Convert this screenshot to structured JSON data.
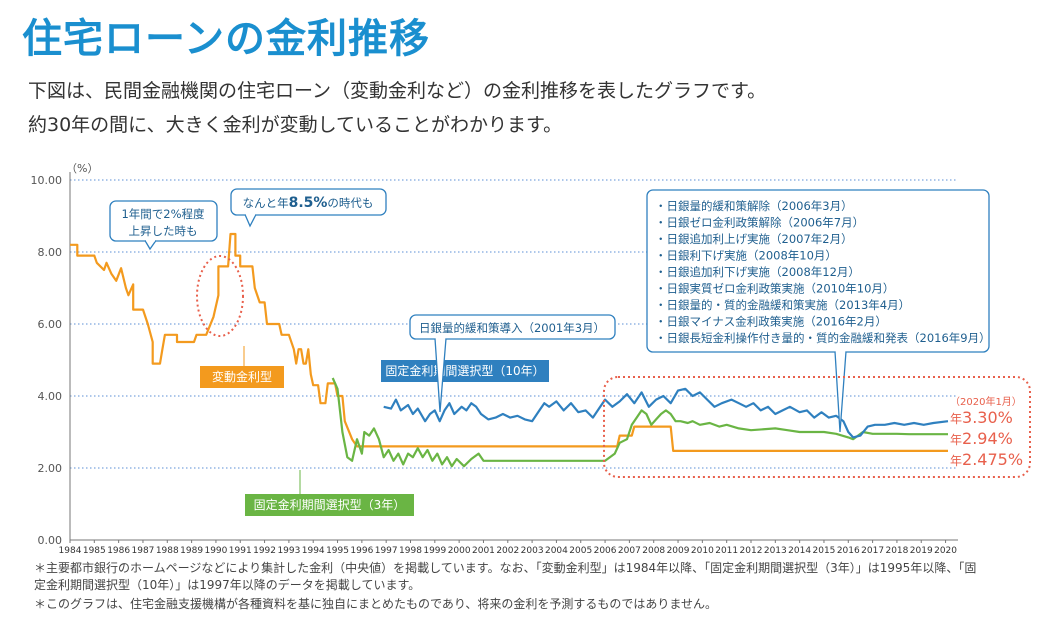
{
  "title": "住宅ローンの金利推移",
  "description": [
    "下図は、民間金融機関の住宅ローン（変動金利など）の金利推移を表したグラフです。",
    "約30年の間に、大きく金利が変動していることがわかります。"
  ],
  "notes": [
    "＊主要都市銀行のホームページなどにより集計した金利（中央値）を掲載しています。なお、「変動金利型」は1984年以降、「固定金利期間選択型（3年）」は1995年以降、「固定金利期間選択型（10年）」は1997年以降のデータを掲載しています。",
    "＊このグラフは、住宅金融支援機構が各種資料を基に独自にまとめたものであり、将来の金利を予測するものではありません。"
  ],
  "chart_data": {
    "type": "line",
    "title": "",
    "unit_label": "（%）",
    "ylim": [
      0,
      10
    ],
    "yticks": [
      "0.00",
      "2.00",
      "4.00",
      "6.00",
      "8.00",
      "10.00"
    ],
    "xlim": [
      1984,
      2020.1
    ],
    "xticks": [
      "1984",
      "1985",
      "1986",
      "1987",
      "1988",
      "1989",
      "1990",
      "1991",
      "1992",
      "1993",
      "1994",
      "1995",
      "1996",
      "1997",
      "1998",
      "1999",
      "2000",
      "2001",
      "2002",
      "2003",
      "2004",
      "2005",
      "2006",
      "2007",
      "2008",
      "2009",
      "2010",
      "2011",
      "2012",
      "2013",
      "2014",
      "2015",
      "2016",
      "2017",
      "2018",
      "2019",
      "2020"
    ],
    "grid": "horizontal-dotted",
    "series": [
      {
        "name": "変動金利型",
        "color": "#f39a1e",
        "points": [
          [
            1984.0,
            8.2
          ],
          [
            1984.3,
            8.2
          ],
          [
            1984.3,
            7.9
          ],
          [
            1985.0,
            7.9
          ],
          [
            1985.1,
            7.7
          ],
          [
            1985.4,
            7.5
          ],
          [
            1985.5,
            7.7
          ],
          [
            1985.7,
            7.4
          ],
          [
            1985.9,
            7.2
          ],
          [
            1986.1,
            7.55
          ],
          [
            1986.3,
            7.0
          ],
          [
            1986.4,
            6.8
          ],
          [
            1986.6,
            7.1
          ],
          [
            1986.6,
            6.4
          ],
          [
            1986.9,
            6.4
          ],
          [
            1987.0,
            6.4
          ],
          [
            1987.2,
            6.0
          ],
          [
            1987.4,
            5.5
          ],
          [
            1987.4,
            4.9
          ],
          [
            1987.7,
            4.9
          ],
          [
            1987.8,
            5.3
          ],
          [
            1987.9,
            5.7
          ],
          [
            1988.4,
            5.7
          ],
          [
            1988.4,
            5.5
          ],
          [
            1989.1,
            5.5
          ],
          [
            1989.2,
            5.7
          ],
          [
            1989.6,
            5.7
          ],
          [
            1989.9,
            6.2
          ],
          [
            1990.1,
            6.8
          ],
          [
            1990.1,
            7.6
          ],
          [
            1990.5,
            7.6
          ],
          [
            1990.6,
            8.5
          ],
          [
            1990.8,
            8.5
          ],
          [
            1990.8,
            7.9
          ],
          [
            1991.0,
            7.9
          ],
          [
            1991.0,
            7.6
          ],
          [
            1991.5,
            7.6
          ],
          [
            1991.6,
            7.0
          ],
          [
            1991.8,
            6.6
          ],
          [
            1992.0,
            6.6
          ],
          [
            1992.1,
            6.0
          ],
          [
            1992.6,
            6.0
          ],
          [
            1992.7,
            5.7
          ],
          [
            1993.0,
            5.7
          ],
          [
            1993.2,
            5.3
          ],
          [
            1993.3,
            4.9
          ],
          [
            1993.4,
            5.3
          ],
          [
            1993.5,
            5.3
          ],
          [
            1993.6,
            4.9
          ],
          [
            1993.7,
            4.9
          ],
          [
            1993.8,
            5.3
          ],
          [
            1993.9,
            4.6
          ],
          [
            1994.0,
            4.3
          ],
          [
            1994.2,
            4.3
          ],
          [
            1994.3,
            3.8
          ],
          [
            1994.5,
            3.8
          ],
          [
            1994.6,
            4.35
          ],
          [
            1994.9,
            4.35
          ],
          [
            1995.0,
            4.0
          ],
          [
            1995.2,
            4.0
          ],
          [
            1995.3,
            3.3
          ],
          [
            1995.6,
            2.8
          ],
          [
            1995.8,
            2.6
          ],
          [
            2006.5,
            2.6
          ],
          [
            2006.6,
            2.9
          ],
          [
            2007.1,
            2.9
          ],
          [
            2007.2,
            3.15
          ],
          [
            2008.7,
            3.15
          ],
          [
            2008.8,
            2.475
          ],
          [
            2020.1,
            2.475
          ]
        ]
      },
      {
        "name": "固定金利期間選択型（3年）",
        "color": "#6ab544",
        "points": [
          [
            1994.8,
            4.5
          ],
          [
            1995.0,
            4.2
          ],
          [
            1995.2,
            3.0
          ],
          [
            1995.4,
            2.3
          ],
          [
            1995.6,
            2.2
          ],
          [
            1995.8,
            2.8
          ],
          [
            1996.0,
            2.4
          ],
          [
            1996.1,
            3.0
          ],
          [
            1996.3,
            2.9
          ],
          [
            1996.5,
            3.1
          ],
          [
            1996.7,
            2.8
          ],
          [
            1996.9,
            2.3
          ],
          [
            1997.1,
            2.5
          ],
          [
            1997.3,
            2.2
          ],
          [
            1997.5,
            2.4
          ],
          [
            1997.7,
            2.1
          ],
          [
            1997.9,
            2.4
          ],
          [
            1998.1,
            2.3
          ],
          [
            1998.3,
            2.55
          ],
          [
            1998.5,
            2.3
          ],
          [
            1998.7,
            2.5
          ],
          [
            1998.9,
            2.2
          ],
          [
            1999.1,
            2.4
          ],
          [
            1999.3,
            2.1
          ],
          [
            1999.5,
            2.3
          ],
          [
            1999.7,
            2.05
          ],
          [
            1999.9,
            2.25
          ],
          [
            2000.2,
            2.05
          ],
          [
            2000.5,
            2.25
          ],
          [
            2000.8,
            2.4
          ],
          [
            2001.0,
            2.2
          ],
          [
            2001.3,
            2.2
          ],
          [
            2001.6,
            2.2
          ],
          [
            2003.0,
            2.2
          ],
          [
            2005.0,
            2.2
          ],
          [
            2006.0,
            2.2
          ],
          [
            2006.4,
            2.4
          ],
          [
            2006.6,
            2.7
          ],
          [
            2006.9,
            2.8
          ],
          [
            2007.1,
            3.2
          ],
          [
            2007.3,
            3.4
          ],
          [
            2007.5,
            3.6
          ],
          [
            2007.7,
            3.5
          ],
          [
            2007.9,
            3.2
          ],
          [
            2008.1,
            3.35
          ],
          [
            2008.3,
            3.5
          ],
          [
            2008.5,
            3.6
          ],
          [
            2008.7,
            3.5
          ],
          [
            2008.9,
            3.3
          ],
          [
            2009.1,
            3.3
          ],
          [
            2009.4,
            3.25
          ],
          [
            2009.6,
            3.3
          ],
          [
            2009.9,
            3.2
          ],
          [
            2010.3,
            3.25
          ],
          [
            2010.7,
            3.15
          ],
          [
            2011.0,
            3.2
          ],
          [
            2011.5,
            3.1
          ],
          [
            2012.0,
            3.05
          ],
          [
            2013.0,
            3.1
          ],
          [
            2013.5,
            3.05
          ],
          [
            2014.0,
            3.0
          ],
          [
            2015.0,
            3.0
          ],
          [
            2015.5,
            2.95
          ],
          [
            2016.0,
            2.85
          ],
          [
            2016.2,
            2.8
          ],
          [
            2016.6,
            3.0
          ],
          [
            2017.0,
            2.95
          ],
          [
            2017.5,
            2.95
          ],
          [
            2018.0,
            2.95
          ],
          [
            2018.5,
            2.94
          ],
          [
            2019.5,
            2.94
          ],
          [
            2020.1,
            2.94
          ]
        ]
      },
      {
        "name": "固定金利期間選択型（10年）",
        "color": "#2f80bf",
        "points": [
          [
            1996.9,
            3.7
          ],
          [
            1997.2,
            3.65
          ],
          [
            1997.4,
            3.9
          ],
          [
            1997.6,
            3.6
          ],
          [
            1997.9,
            3.75
          ],
          [
            1998.1,
            3.5
          ],
          [
            1998.3,
            3.65
          ],
          [
            1998.6,
            3.3
          ],
          [
            1998.8,
            3.5
          ],
          [
            1999.0,
            3.6
          ],
          [
            1999.2,
            3.3
          ],
          [
            1999.4,
            3.6
          ],
          [
            1999.6,
            3.8
          ],
          [
            1999.8,
            3.5
          ],
          [
            2000.1,
            3.7
          ],
          [
            2000.3,
            3.6
          ],
          [
            2000.5,
            3.8
          ],
          [
            2000.7,
            3.7
          ],
          [
            2000.9,
            3.5
          ],
          [
            2001.2,
            3.35
          ],
          [
            2001.5,
            3.4
          ],
          [
            2001.8,
            3.5
          ],
          [
            2002.1,
            3.4
          ],
          [
            2002.4,
            3.45
          ],
          [
            2002.7,
            3.35
          ],
          [
            2003.0,
            3.3
          ],
          [
            2003.3,
            3.6
          ],
          [
            2003.5,
            3.8
          ],
          [
            2003.7,
            3.7
          ],
          [
            2004.0,
            3.85
          ],
          [
            2004.3,
            3.6
          ],
          [
            2004.6,
            3.8
          ],
          [
            2004.9,
            3.55
          ],
          [
            2005.2,
            3.6
          ],
          [
            2005.5,
            3.4
          ],
          [
            2005.8,
            3.7
          ],
          [
            2006.0,
            3.9
          ],
          [
            2006.3,
            3.7
          ],
          [
            2006.6,
            3.85
          ],
          [
            2006.9,
            4.05
          ],
          [
            2007.2,
            3.8
          ],
          [
            2007.5,
            4.1
          ],
          [
            2007.8,
            3.7
          ],
          [
            2008.1,
            3.9
          ],
          [
            2008.4,
            4.0
          ],
          [
            2008.7,
            3.8
          ],
          [
            2009.0,
            4.15
          ],
          [
            2009.3,
            4.2
          ],
          [
            2009.6,
            4.0
          ],
          [
            2009.9,
            4.1
          ],
          [
            2010.2,
            3.9
          ],
          [
            2010.5,
            3.7
          ],
          [
            2010.8,
            3.8
          ],
          [
            2011.2,
            3.9
          ],
          [
            2011.5,
            3.8
          ],
          [
            2011.8,
            3.7
          ],
          [
            2012.1,
            3.8
          ],
          [
            2012.4,
            3.6
          ],
          [
            2012.7,
            3.7
          ],
          [
            2013.0,
            3.5
          ],
          [
            2013.3,
            3.6
          ],
          [
            2013.6,
            3.7
          ],
          [
            2014.0,
            3.55
          ],
          [
            2014.3,
            3.6
          ],
          [
            2014.6,
            3.4
          ],
          [
            2014.9,
            3.55
          ],
          [
            2015.2,
            3.4
          ],
          [
            2015.5,
            3.45
          ],
          [
            2015.8,
            3.3
          ],
          [
            2016.0,
            3.0
          ],
          [
            2016.2,
            2.85
          ],
          [
            2016.5,
            2.9
          ],
          [
            2016.8,
            3.15
          ],
          [
            2017.1,
            3.2
          ],
          [
            2017.5,
            3.2
          ],
          [
            2017.9,
            3.25
          ],
          [
            2018.3,
            3.2
          ],
          [
            2018.7,
            3.25
          ],
          [
            2019.1,
            3.2
          ],
          [
            2019.5,
            3.25
          ],
          [
            2020.1,
            3.3
          ]
        ]
      }
    ],
    "series_labels": {
      "variable": "変動金利型",
      "fixed3": "固定金利期間選択型（3年）",
      "fixed10": "固定金利期間選択型（10年）"
    },
    "annotations": {
      "rise": [
        "1年間で2%程度",
        "上昇した時も"
      ],
      "peak_prefix": "なんと年",
      "peak_value": "8.5%",
      "peak_suffix": "の時代も",
      "easing2001": "日銀量的緩和策導入（2001年3月）",
      "boj_events": [
        "・日銀量的緩和策解除（2006年3月）",
        "・日銀ゼロ金利政策解除（2006年7月）",
        "・日銀追加利上げ実施（2007年2月）",
        "・日銀利下げ実施（2008年10月）",
        "・日銀追加利下げ実施（2008年12月）",
        "・日銀実質ゼロ金利政策実施（2010年10月）",
        "・日銀量的・質的金融緩和策実施（2013年4月）",
        "・日銀マイナス金利政策実施（2016年2月）",
        "・日銀長短金利操作付き量的・質的金融緩和発表（2016年9月）"
      ],
      "end_date": "（2020年1月）",
      "end_values": [
        {
          "prefix": "年",
          "value": "3.30%"
        },
        {
          "prefix": "年",
          "value": "2.94%"
        },
        {
          "prefix": "年",
          "value": "2.475%"
        }
      ]
    }
  }
}
